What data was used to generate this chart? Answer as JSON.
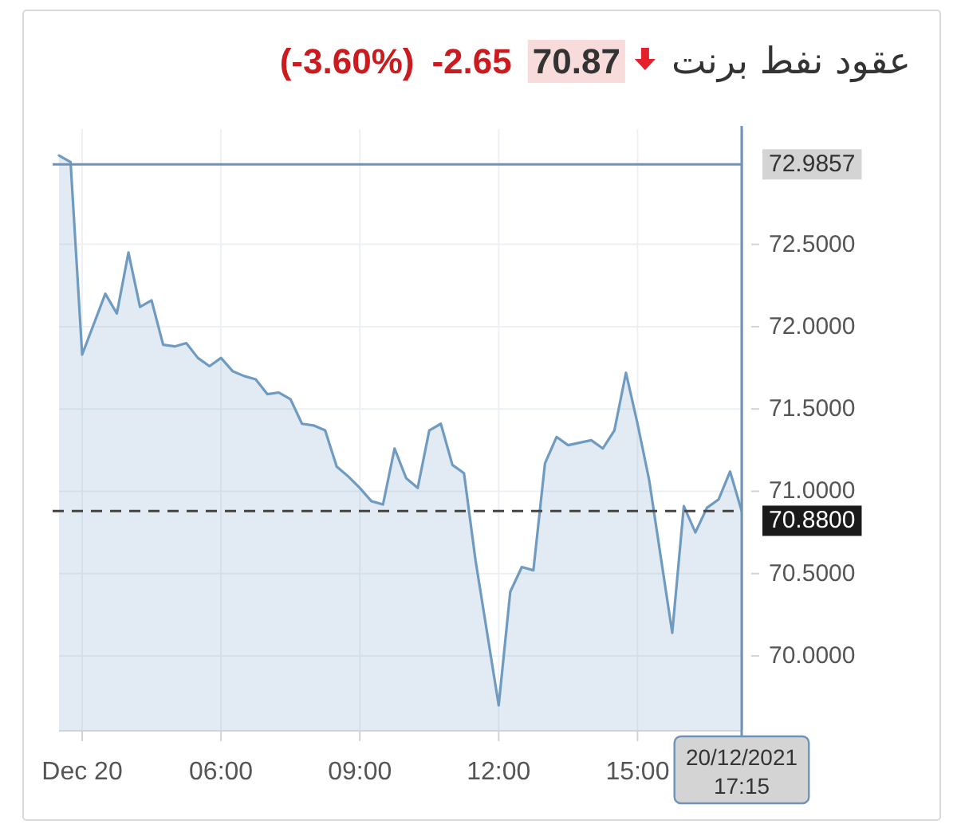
{
  "chart_data": {
    "type": "area",
    "title": "عقود نفط برنت",
    "annotations": [
      "70.87",
      "-2.65",
      "(-3.60%)"
    ],
    "x": [
      2.5,
      2.75,
      3.0,
      3.5,
      3.75,
      4.0,
      4.25,
      4.5,
      4.75,
      5.0,
      5.25,
      5.5,
      5.75,
      6.0,
      6.25,
      6.5,
      6.75,
      7.0,
      7.25,
      7.5,
      7.75,
      8.0,
      8.25,
      8.5,
      8.75,
      9.0,
      9.25,
      9.5,
      9.75,
      10.0,
      10.25,
      10.5,
      10.75,
      11.0,
      11.25,
      11.5,
      12.0,
      12.25,
      12.5,
      12.75,
      13.0,
      13.25,
      13.5,
      14.0,
      14.25,
      14.5,
      14.75,
      15.0,
      15.25,
      15.75,
      16.0,
      16.25,
      16.5,
      16.75,
      17.0,
      17.25
    ],
    "series": [
      {
        "color": "#6f9bc1",
        "values": [
          73.04,
          73.0,
          71.83,
          72.2,
          72.08,
          72.45,
          72.12,
          72.16,
          71.89,
          71.88,
          71.9,
          71.81,
          71.76,
          71.81,
          71.73,
          71.7,
          71.68,
          71.59,
          71.6,
          71.56,
          71.41,
          71.4,
          71.37,
          71.15,
          71.09,
          71.02,
          70.94,
          70.92,
          71.26,
          71.08,
          71.02,
          71.37,
          71.41,
          71.16,
          71.11,
          70.58,
          69.7,
          70.39,
          70.54,
          70.52,
          71.17,
          71.33,
          71.28,
          71.31,
          71.26,
          71.37,
          71.72,
          71.41,
          71.07,
          70.14,
          70.91,
          70.75,
          70.9,
          70.95,
          71.12,
          70.88
        ]
      }
    ],
    "xlim": [
      2.5,
      17.25
    ],
    "xticks": [
      {
        "value": 3,
        "label": "Dec 20"
      },
      {
        "value": 6,
        "label": "06:00"
      },
      {
        "value": 9,
        "label": "09:00"
      },
      {
        "value": 12,
        "label": "12:00"
      },
      {
        "value": 15,
        "label": "15:00"
      }
    ],
    "ylim": [
      69.55,
      73.2
    ],
    "yticks": [
      {
        "value": 70,
        "label": "70.0000"
      },
      {
        "value": 70.5,
        "label": "70.5000"
      },
      {
        "value": 71,
        "label": "71.0000"
      },
      {
        "value": 71.5,
        "label": "71.5000"
      },
      {
        "value": 72,
        "label": "72.0000"
      },
      {
        "value": 72.5,
        "label": "72.5000"
      }
    ],
    "ref_lines": [
      {
        "axis": "y",
        "value": 72.9857,
        "label": "72.9857",
        "color": "#6f93b6",
        "line_style": "solid"
      },
      {
        "axis": "y",
        "value": 70.88,
        "label": "70.8800",
        "color": "#444444",
        "line_style": "dashed"
      },
      {
        "axis": "x",
        "value": 17.25,
        "label": "20/12/2021 17:15",
        "color": "#6f93b6",
        "line_style": "solid"
      }
    ],
    "grid": true
  }
}
